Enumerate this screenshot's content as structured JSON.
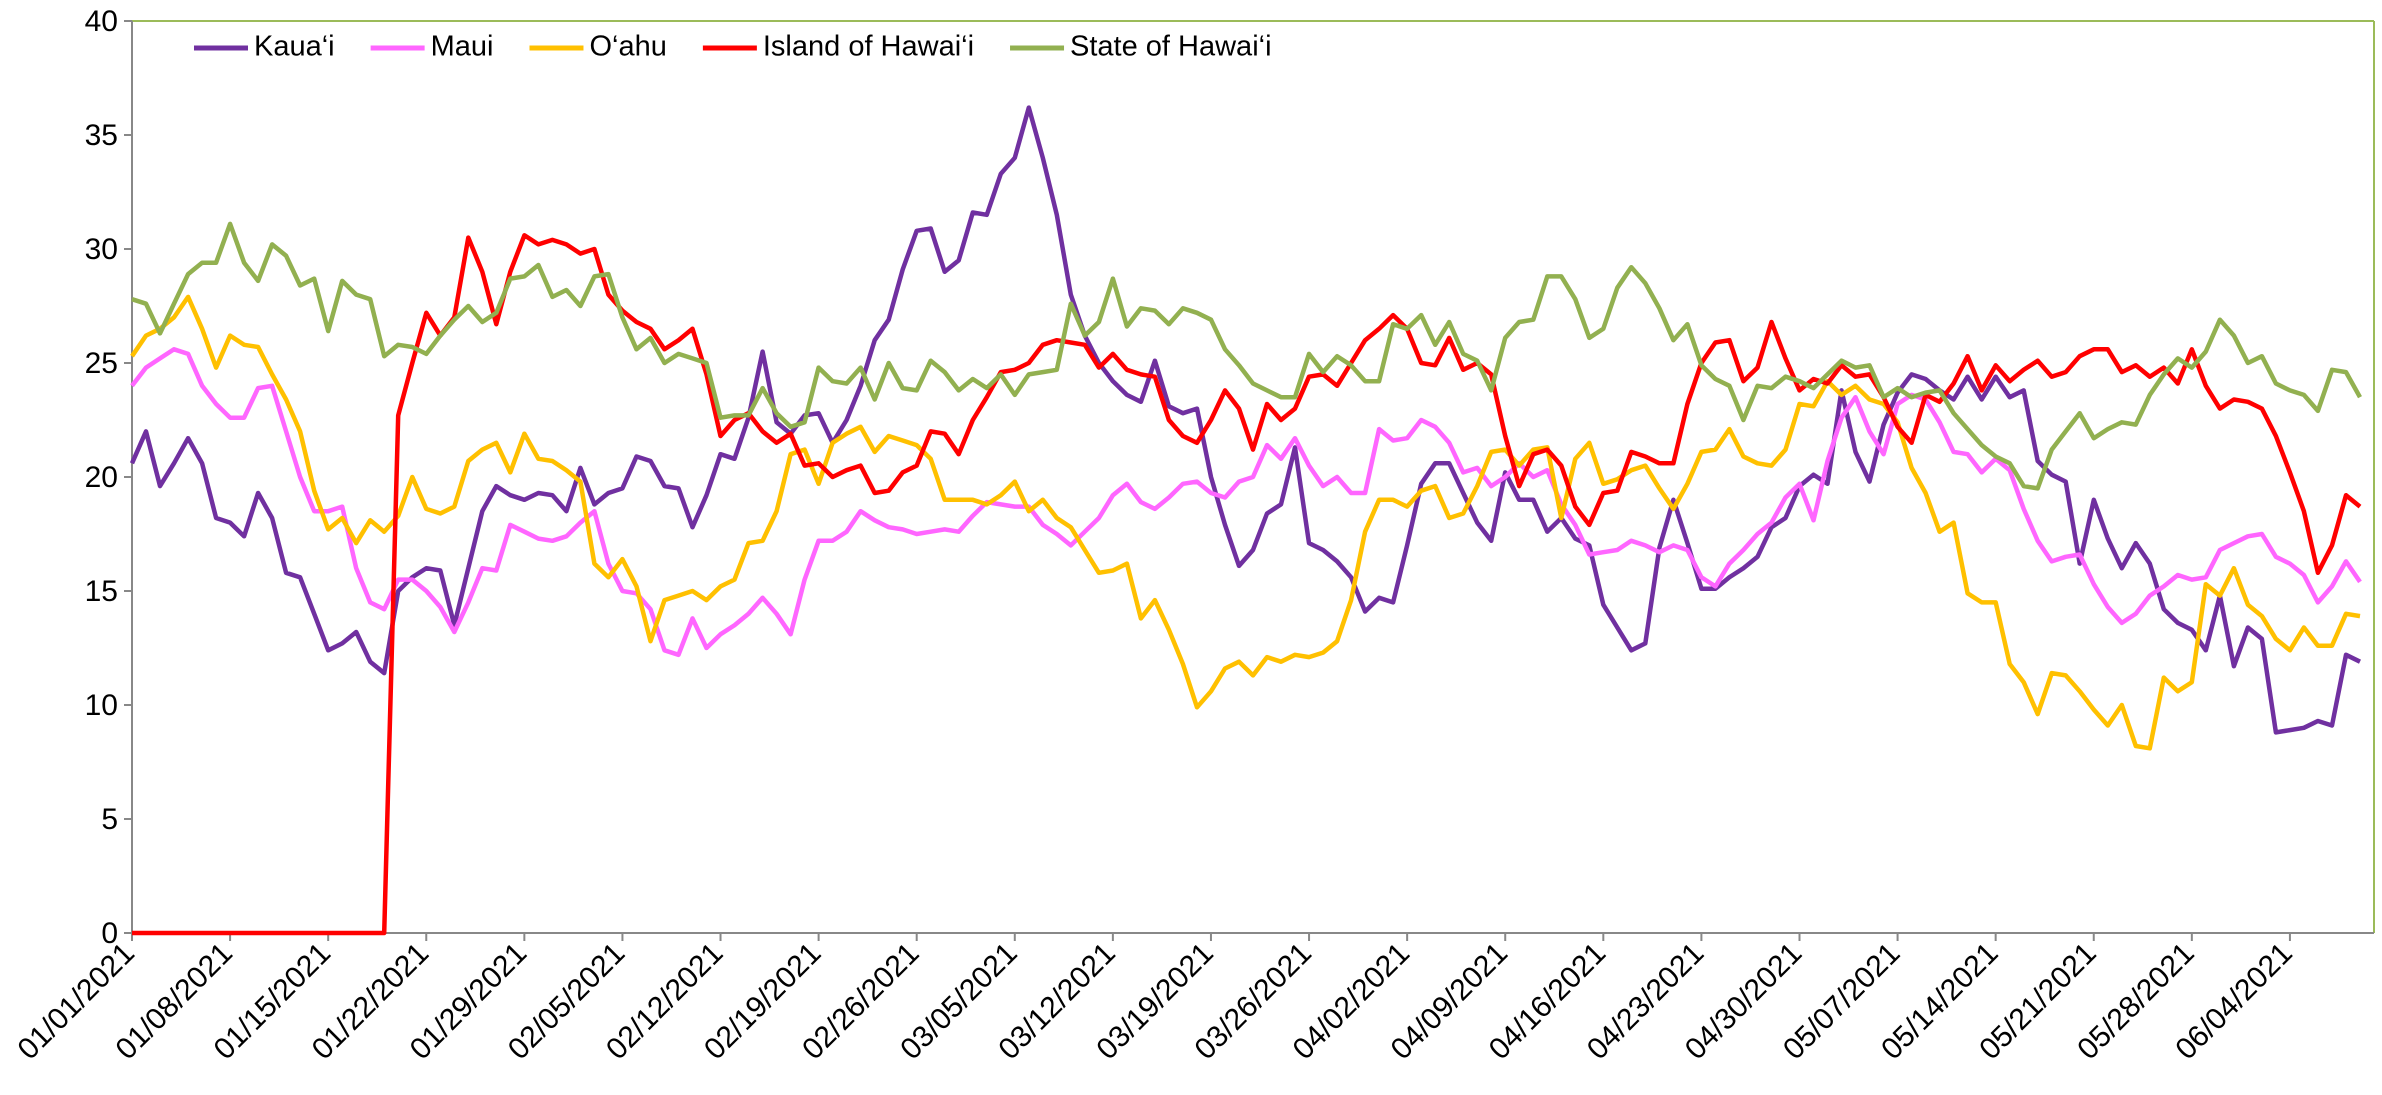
{
  "chart_data": {
    "type": "line",
    "categories": [
      "01/01/2021",
      null,
      null,
      null,
      null,
      null,
      null,
      "01/08/2021",
      null,
      null,
      null,
      null,
      null,
      null,
      "01/15/2021",
      null,
      null,
      null,
      null,
      null,
      null,
      "01/22/2021",
      null,
      null,
      null,
      null,
      null,
      null,
      "01/29/2021",
      null,
      null,
      null,
      null,
      null,
      null,
      "02/05/2021",
      null,
      null,
      null,
      null,
      null,
      null,
      "02/12/2021",
      null,
      null,
      null,
      null,
      null,
      null,
      "02/19/2021",
      null,
      null,
      null,
      null,
      null,
      null,
      "02/26/2021",
      null,
      null,
      null,
      null,
      null,
      null,
      "03/05/2021",
      null,
      null,
      null,
      null,
      null,
      null,
      "03/12/2021",
      null,
      null,
      null,
      null,
      null,
      null,
      "03/19/2021",
      null,
      null,
      null,
      null,
      null,
      null,
      "03/26/2021",
      null,
      null,
      null,
      null,
      null,
      null,
      "04/02/2021",
      null,
      null,
      null,
      null,
      null,
      null,
      "04/09/2021",
      null,
      null,
      null,
      null,
      null,
      null,
      "04/16/2021",
      null,
      null,
      null,
      null,
      null,
      null,
      "04/23/2021",
      null,
      null,
      null,
      null,
      null,
      null,
      "04/30/2021",
      null,
      null,
      null,
      null,
      null,
      null,
      "05/07/2021",
      null,
      null,
      null,
      null,
      null,
      null,
      "05/14/2021",
      null,
      null,
      null,
      null,
      null,
      null,
      "05/21/2021",
      null,
      null,
      null,
      null,
      null,
      null,
      "05/28/2021",
      null,
      null,
      null,
      null,
      null,
      null,
      "06/04/2021",
      null,
      null,
      null,
      null,
      null
    ],
    "series": [
      {
        "name": "Kaua‘i",
        "color": "#7030a0",
        "values": [
          20.6,
          22,
          19.6,
          20.6,
          21.7,
          20.6,
          18.2,
          18,
          17.4,
          19.3,
          18.2,
          15.8,
          15.6,
          14,
          12.4,
          12.7,
          13.2,
          11.9,
          11.4,
          15,
          15.6,
          16,
          15.9,
          13.5,
          16,
          18.5,
          19.6,
          19.2,
          19,
          19.3,
          19.2,
          18.5,
          20.4,
          18.8,
          19.3,
          19.5,
          20.9,
          20.7,
          19.6,
          19.5,
          17.8,
          19.2,
          21,
          20.8,
          22.6,
          25.5,
          22.4,
          21.9,
          22.7,
          22.8,
          21.5,
          22.5,
          24,
          26,
          26.9,
          29.1,
          30.8,
          30.9,
          29,
          29.5,
          31.6,
          31.5,
          33.3,
          34,
          36.2,
          34,
          31.5,
          28,
          26.2,
          25,
          24.2,
          23.6,
          23.3,
          25.1,
          23.1,
          22.8,
          23,
          20,
          17.9,
          16.1,
          16.8,
          18.4,
          18.8,
          21.3,
          17.1,
          16.8,
          16.3,
          15.6,
          14.1,
          14.7,
          14.5,
          17,
          19.7,
          20.6,
          20.6,
          19.3,
          18,
          17.2,
          20.2,
          19,
          19,
          17.6,
          18.2,
          17.3,
          17,
          14.4,
          13.4,
          12.4,
          12.7,
          16.9,
          19,
          17.1,
          15.1,
          15.1,
          15.6,
          16,
          16.5,
          17.8,
          18.2,
          19.6,
          20.1,
          19.7,
          23.8,
          21.1,
          19.8,
          22.3,
          23.7,
          24.5,
          24.3,
          23.8,
          23.4,
          24.4,
          23.4,
          24.4,
          23.5,
          23.8,
          20.7,
          20.1,
          19.8,
          16.2,
          19,
          17.3,
          16,
          17.1,
          16.2,
          14.2,
          13.6,
          13.3,
          12.4,
          14.8,
          11.7,
          13.4,
          12.9,
          8.8,
          8.9,
          9,
          9.3,
          9.1,
          12.2,
          11.9
        ]
      },
      {
        "name": "Maui",
        "color": "#ff66ff",
        "values": [
          24,
          24.8,
          25.2,
          25.6,
          25.4,
          24,
          23.2,
          22.6,
          22.6,
          23.9,
          24,
          22,
          20,
          18.5,
          18.5,
          18.7,
          16,
          14.5,
          14.2,
          15.5,
          15.5,
          15,
          14.3,
          13.2,
          14.5,
          16,
          15.9,
          17.9,
          17.6,
          17.3,
          17.2,
          17.4,
          18,
          18.5,
          16.2,
          15,
          14.9,
          14.2,
          12.4,
          12.2,
          13.8,
          12.5,
          13.1,
          13.5,
          14,
          14.7,
          14,
          13.1,
          15.5,
          17.2,
          17.2,
          17.6,
          18.5,
          18.1,
          17.8,
          17.7,
          17.5,
          17.6,
          17.7,
          17.6,
          18.3,
          18.9,
          18.8,
          18.7,
          18.7,
          17.9,
          17.5,
          17,
          17.6,
          18.2,
          19.2,
          19.7,
          18.9,
          18.6,
          19.1,
          19.7,
          19.8,
          19.3,
          19.1,
          19.8,
          20,
          21.4,
          20.8,
          21.7,
          20.5,
          19.6,
          20,
          19.3,
          19.3,
          22.1,
          21.6,
          21.7,
          22.5,
          22.2,
          21.5,
          20.2,
          20.4,
          19.6,
          20,
          20.6,
          20,
          20.3,
          18.8,
          17.9,
          16.6,
          16.7,
          16.8,
          17.2,
          17,
          16.7,
          17,
          16.8,
          15.6,
          15.2,
          16.2,
          16.8,
          17.5,
          18,
          19.1,
          19.7,
          18.1,
          20.7,
          22.6,
          23.5,
          22,
          21,
          23.2,
          23.6,
          23.4,
          22.4,
          21.1,
          21,
          20.2,
          20.8,
          20.3,
          18.6,
          17.2,
          16.3,
          16.5,
          16.6,
          15.3,
          14.3,
          13.6,
          14,
          14.8,
          15.2,
          15.7,
          15.5,
          15.6,
          16.8,
          17.1,
          17.4,
          17.5,
          16.5,
          16.2,
          15.7,
          14.5,
          15.2,
          16.3,
          15.4
        ]
      },
      {
        "name": "O‘ahu",
        "color": "#ffc000",
        "values": [
          25.3,
          26.2,
          26.5,
          27,
          27.9,
          26.5,
          24.8,
          26.2,
          25.8,
          25.7,
          24.5,
          23.4,
          22,
          19.4,
          17.7,
          18.2,
          17.1,
          18.1,
          17.6,
          18.3,
          20,
          18.6,
          18.4,
          18.7,
          20.7,
          21.2,
          21.5,
          20.2,
          21.9,
          20.8,
          20.7,
          20.3,
          19.8,
          16.2,
          15.6,
          16.4,
          15.2,
          12.8,
          14.6,
          14.8,
          15,
          14.6,
          15.2,
          15.5,
          17.1,
          17.2,
          18.5,
          21,
          21.2,
          19.7,
          21.5,
          21.9,
          22.2,
          21.1,
          21.8,
          21.6,
          21.4,
          20.8,
          19,
          19,
          19,
          18.8,
          19.2,
          19.8,
          18.5,
          19,
          18.2,
          17.8,
          16.8,
          15.8,
          15.9,
          16.2,
          13.8,
          14.6,
          13.3,
          11.8,
          9.9,
          10.6,
          11.6,
          11.9,
          11.3,
          12.1,
          11.9,
          12.2,
          12.1,
          12.3,
          12.8,
          14.6,
          17.6,
          19,
          19,
          18.7,
          19.4,
          19.6,
          18.2,
          18.4,
          19.6,
          21.1,
          21.2,
          20.5,
          21.2,
          21.3,
          18.2,
          20.8,
          21.5,
          19.7,
          19.9,
          20.3,
          20.5,
          19.5,
          18.6,
          19.7,
          21.1,
          21.2,
          22.1,
          20.9,
          20.6,
          20.5,
          21.2,
          23.2,
          23.1,
          24.2,
          23.6,
          24,
          23.4,
          23.2,
          22.4,
          20.4,
          19.3,
          17.6,
          18,
          14.9,
          14.5,
          14.5,
          11.8,
          11,
          9.6,
          11.4,
          11.3,
          10.6,
          9.8,
          9.1,
          10,
          8.2,
          8.1,
          11.2,
          10.6,
          11,
          15.3,
          14.8,
          16,
          14.4,
          13.9,
          12.9,
          12.4,
          13.4,
          12.6,
          12.6,
          14,
          13.9
        ]
      },
      {
        "name": "Island of Hawai‘i",
        "color": "#ff0000",
        "values": [
          0,
          0,
          0,
          0,
          0,
          0,
          0,
          0,
          0,
          0,
          0,
          0,
          0,
          0,
          0,
          0,
          0,
          0,
          0,
          22.7,
          25,
          27.2,
          26.2,
          27,
          30.5,
          29,
          26.7,
          29,
          30.6,
          30.2,
          30.4,
          30.2,
          29.8,
          30,
          28,
          27.3,
          26.8,
          26.5,
          25.6,
          26,
          26.5,
          24.5,
          21.8,
          22.5,
          22.8,
          22,
          21.5,
          21.9,
          20.5,
          20.6,
          20,
          20.3,
          20.5,
          19.3,
          19.4,
          20.2,
          20.5,
          22,
          21.9,
          21,
          22.5,
          23.5,
          24.6,
          24.7,
          25,
          25.8,
          26,
          25.9,
          25.8,
          24.8,
          25.4,
          24.7,
          24.5,
          24.4,
          22.5,
          21.8,
          21.5,
          22.5,
          23.8,
          23,
          21.2,
          23.2,
          22.5,
          23,
          24.4,
          24.5,
          24,
          25,
          26,
          26.5,
          27.1,
          26.5,
          25,
          24.9,
          26.1,
          24.7,
          25,
          24.5,
          21.8,
          19.6,
          21,
          21.2,
          20.5,
          18.7,
          17.9,
          19.3,
          19.4,
          21.1,
          20.9,
          20.6,
          20.6,
          23.2,
          25,
          25.9,
          26,
          24.2,
          24.8,
          26.8,
          25.2,
          23.8,
          24.3,
          24.1,
          24.9,
          24.4,
          24.5,
          23.5,
          22.2,
          21.5,
          23.6,
          23.3,
          24.1,
          25.3,
          23.8,
          24.9,
          24.2,
          24.7,
          25.1,
          24.4,
          24.6,
          25.3,
          25.6,
          25.6,
          24.6,
          24.9,
          24.4,
          24.8,
          24.1,
          25.6,
          24,
          23,
          23.4,
          23.3,
          23,
          21.8,
          20.2,
          18.5,
          15.8,
          17,
          19.2,
          18.7
        ]
      },
      {
        "name": "State of Hawai‘i",
        "color": "#92b050",
        "values": [
          27.8,
          27.6,
          26.3,
          27.6,
          28.9,
          29.4,
          29.4,
          31.1,
          29.4,
          28.6,
          30.2,
          29.7,
          28.4,
          28.7,
          26.4,
          28.6,
          28,
          27.8,
          25.3,
          25.8,
          25.7,
          25.4,
          26.2,
          26.9,
          27.5,
          26.8,
          27.2,
          28.7,
          28.8,
          29.3,
          27.9,
          28.2,
          27.5,
          28.8,
          28.9,
          27,
          25.6,
          26.1,
          25,
          25.4,
          25.2,
          25,
          22.6,
          22.7,
          22.7,
          23.9,
          22.8,
          22.2,
          22.4,
          24.8,
          24.2,
          24.1,
          24.8,
          23.4,
          25,
          23.9,
          23.8,
          25.1,
          24.6,
          23.8,
          24.3,
          23.9,
          24.5,
          23.6,
          24.5,
          24.6,
          24.7,
          27.6,
          26.2,
          26.8,
          28.7,
          26.6,
          27.4,
          27.3,
          26.7,
          27.4,
          27.2,
          26.9,
          25.6,
          24.9,
          24.1,
          23.8,
          23.5,
          23.5,
          25.4,
          24.6,
          25.3,
          24.9,
          24.2,
          24.2,
          26.7,
          26.5,
          27.1,
          25.8,
          26.8,
          25.4,
          25.1,
          23.8,
          26.1,
          26.8,
          26.9,
          28.8,
          28.8,
          27.8,
          26.1,
          26.5,
          28.3,
          29.2,
          28.5,
          27.4,
          26,
          26.7,
          24.9,
          24.3,
          24,
          22.5,
          24,
          23.9,
          24.4,
          24.2,
          23.9,
          24.5,
          25.1,
          24.8,
          24.9,
          23.5,
          23.9,
          23.5,
          23.7,
          23.8,
          22.8,
          22.1,
          21.4,
          20.9,
          20.6,
          19.6,
          19.5,
          21.2,
          22,
          22.8,
          21.7,
          22.1,
          22.4,
          22.3,
          23.6,
          24.5,
          25.2,
          24.8,
          25.5,
          26.9,
          26.2,
          25,
          25.3,
          24.1,
          23.8,
          23.6,
          22.9,
          24.7,
          24.6,
          23.5
        ]
      }
    ],
    "ylim": [
      0,
      40
    ],
    "yticks": [
      0,
      5,
      10,
      15,
      20,
      25,
      30,
      35,
      40
    ],
    "grid": false,
    "legend": "top-left"
  }
}
